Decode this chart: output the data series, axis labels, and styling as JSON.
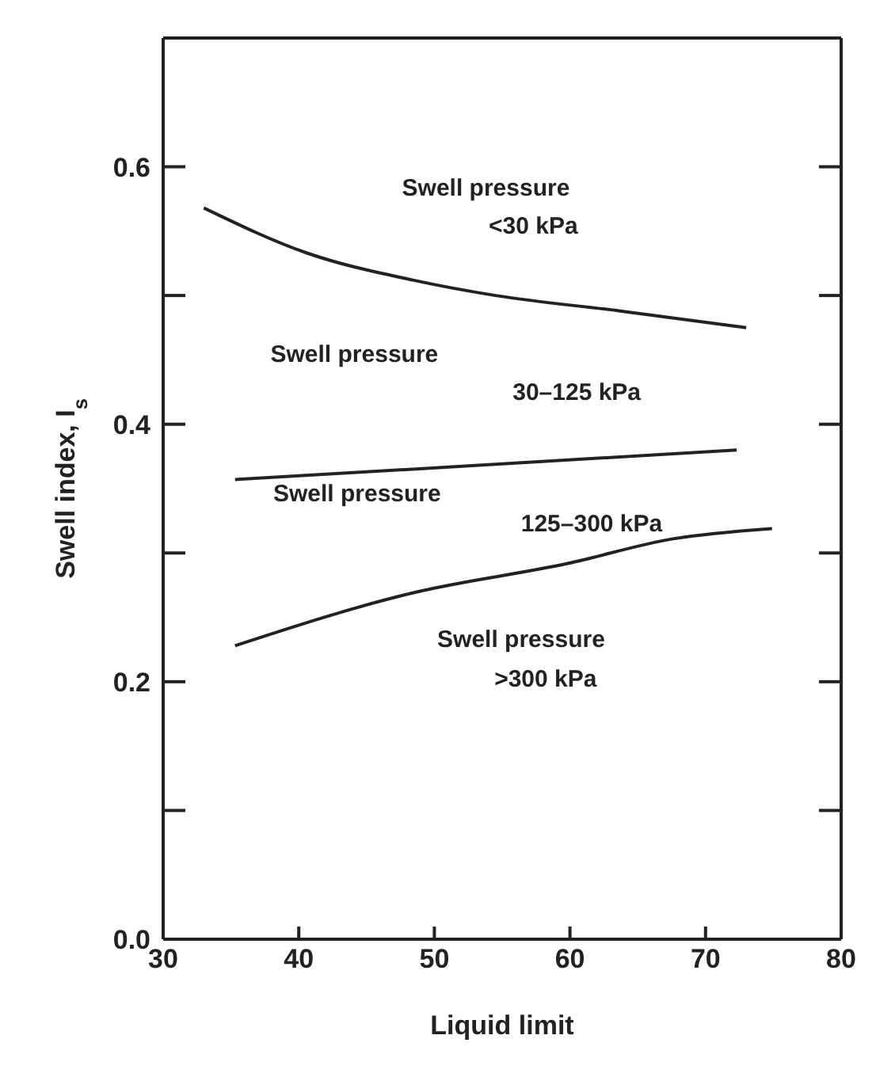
{
  "chart_data": {
    "type": "line",
    "xlabel": "Liquid limit",
    "ylabel": "Swell index, I$_{s}$",
    "xlim": [
      30,
      80
    ],
    "xticks": [
      30,
      40,
      50,
      60,
      70,
      80
    ],
    "ylim": [
      0,
      0.7
    ],
    "yticks": [
      {
        "value": 0,
        "label": "0.0"
      },
      {
        "value": 0.1,
        "label": null
      },
      0.2,
      {
        "value": 0.3,
        "label": null
      },
      0.4,
      {
        "value": 0.5,
        "label": null
      },
      0.6
    ],
    "marker": "none",
    "line_style": "solid",
    "series": [
      {
        "color": "#222222",
        "x": [
          33,
          40.6,
          48.4,
          54.5,
          63.7,
          73
        ],
        "values": [
          0.568,
          0.533,
          0.512,
          0.5,
          0.488,
          0.475
        ]
      },
      {
        "color": "#222222",
        "x": [
          35.3,
          72.3
        ],
        "values": [
          0.357,
          0.38
        ]
      },
      {
        "color": "#222222",
        "x": [
          35.3,
          48.4,
          59.9,
          67.6,
          74.9
        ],
        "values": [
          0.228,
          0.269,
          0.292,
          0.311,
          0.319
        ]
      }
    ],
    "annotations": [
      "Swell pressure",
      "<30 kPa",
      "Swell pressure",
      "30–125 kPa",
      "Swell pressure",
      "125–300 kPa",
      "Swell pressure",
      ">300 kPa"
    ]
  }
}
